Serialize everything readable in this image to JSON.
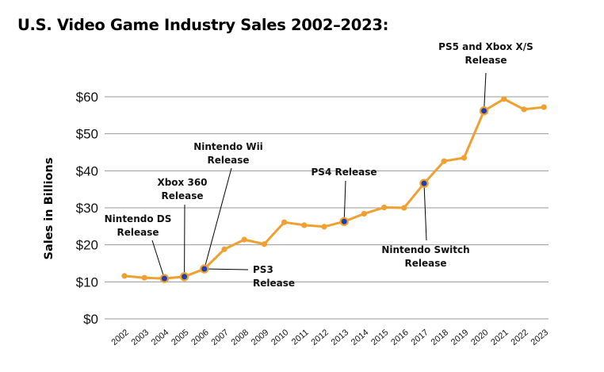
{
  "chart_data": {
    "type": "line",
    "title": "U.S. Video Game Industry Sales 2002–2023:",
    "ylabel": "Sales in Billions",
    "xlabel": "",
    "ylim": [
      0,
      60
    ],
    "yticks": [
      "$0",
      "$10",
      "$20",
      "$30",
      "$40",
      "$50",
      "$60"
    ],
    "grid": true,
    "line_color": "#f0a030",
    "highlight_color": "#1f3fae",
    "series": [
      {
        "x": [
          "2002",
          "2003",
          "2004",
          "2005",
          "2006",
          "2007",
          "2008",
          "2009",
          "2010",
          "2011",
          "2012",
          "2013",
          "2014",
          "2015",
          "2016",
          "2017",
          "2018",
          "2019",
          "2020",
          "2021",
          "2022",
          "2023"
        ],
        "values": [
          11.6,
          11.1,
          10.9,
          11.4,
          13.5,
          18.8,
          21.4,
          20.2,
          26.1,
          25.3,
          24.9,
          26.3,
          28.4,
          30.1,
          30.0,
          36.6,
          42.6,
          43.5,
          56.2,
          59.4,
          56.6,
          57.2
        ]
      }
    ],
    "annotations": [
      {
        "year": "2004",
        "lines": [
          "Nintendo DS",
          "Release"
        ]
      },
      {
        "year": "2005",
        "lines": [
          "Xbox 360",
          "Release"
        ]
      },
      {
        "year": "2006",
        "lines": [
          "Nintendo Wii",
          "Release"
        ]
      },
      {
        "year": "2006",
        "lines": [
          "PS3",
          "Release"
        ]
      },
      {
        "year": "2013",
        "lines": [
          "PS4 Release"
        ]
      },
      {
        "year": "2017",
        "lines": [
          "Nintendo Switch",
          "Release"
        ]
      },
      {
        "year": "2020",
        "lines": [
          "PS5 and Xbox X/S",
          "Release"
        ]
      }
    ]
  }
}
